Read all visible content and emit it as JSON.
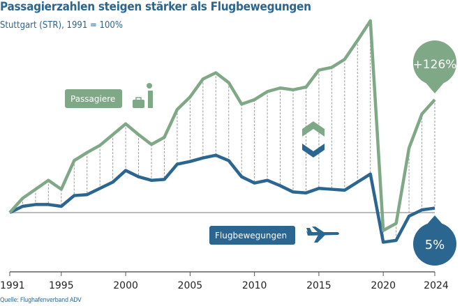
{
  "title": "Passagierzahlen steigen stärker als Flugbewegungen",
  "subtitle": "Stuttgart (STR), 1991 = 100%",
  "source": "Quelle: Flughafenverband ADV",
  "colors": {
    "passengers": "#7fa886",
    "movements": "#2a6690",
    "title": "#2a6690"
  },
  "chart_data": {
    "type": "line",
    "title": "Passagierzahlen steigen stärker als Flugbewegungen",
    "subtitle": "Stuttgart (STR), 1991 = 100%",
    "x": [
      1991,
      1992,
      1993,
      1994,
      1995,
      1996,
      1997,
      1998,
      1999,
      2000,
      2001,
      2002,
      2003,
      2004,
      2005,
      2006,
      2007,
      2008,
      2009,
      2010,
      2011,
      2012,
      2013,
      2014,
      2015,
      2016,
      2017,
      2018,
      2019,
      2020,
      2021,
      2022,
      2023,
      2024
    ],
    "xticks": [
      "1991",
      "1995",
      "2000",
      "2005",
      "2010",
      "2015",
      "2020",
      "2024"
    ],
    "baseline": 100,
    "grid": false,
    "series": [
      {
        "name": "Passagiere",
        "color": "#7fa886",
        "icon": "passenger-with-suitcase-icon",
        "values": [
          100,
          116,
          126,
          136,
          126,
          158,
          167,
          175,
          187,
          199,
          187,
          176,
          184,
          215,
          229,
          249,
          256,
          245,
          221,
          226,
          235,
          239,
          237,
          240,
          259,
          262,
          271,
          292,
          314,
          80,
          88,
          172,
          210,
          226
        ],
        "end_label": "+126%"
      },
      {
        "name": "Flugbewegungen",
        "color": "#2a6690",
        "icon": "airplane-icon",
        "values": [
          100,
          107,
          109,
          109,
          107,
          119,
          120,
          127,
          134,
          147,
          140,
          136,
          137,
          154,
          157,
          161,
          164,
          158,
          140,
          133,
          136,
          130,
          123,
          122,
          127,
          126,
          125,
          134,
          143,
          67,
          69,
          96,
          103,
          105
        ],
        "end_label": "5%"
      }
    ]
  }
}
